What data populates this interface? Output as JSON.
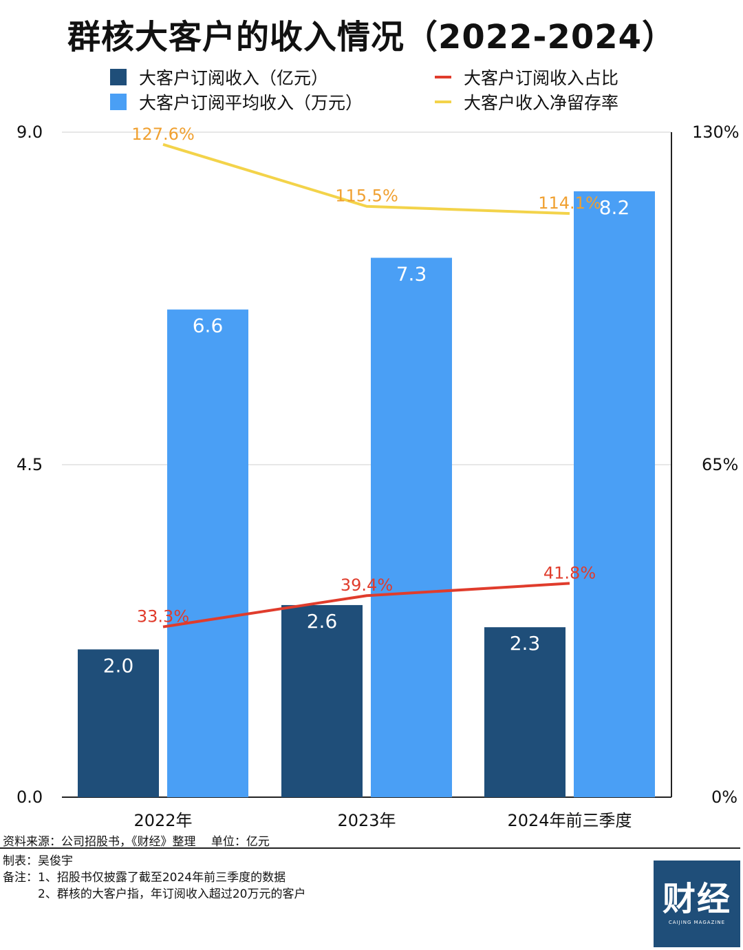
{
  "title": "群核大客户的收入情况（2022-2024）",
  "legend": [
    {
      "label": "大客户订阅收入（亿元）",
      "color": "#1f4e79",
      "kind": "square"
    },
    {
      "label": "大客户订阅收入占比",
      "color": "#e03c2c",
      "kind": "line"
    },
    {
      "label": "大客户订阅平均收入（万元）",
      "color": "#4a9ff5",
      "kind": "square"
    },
    {
      "label": "大客户收入净留存率",
      "color": "#f3d34a",
      "kind": "line"
    }
  ],
  "left_axis_ticks": [
    "9.0",
    "4.5",
    "0.0"
  ],
  "right_axis_ticks": [
    "130%",
    "65%",
    "0%"
  ],
  "chart_data": {
    "type": "bar",
    "categories": [
      "2022年",
      "2023年",
      "2024年前三季度"
    ],
    "ylim": [
      0,
      9
    ],
    "y2lim": [
      0,
      130
    ],
    "grid": true,
    "series": [
      {
        "name": "大客户订阅收入（亿元）",
        "type": "bar",
        "axis": "left",
        "color": "#1f4e79",
        "values": [
          2.0,
          2.6,
          2.3
        ],
        "labels": [
          "2.0",
          "2.6",
          "2.3"
        ]
      },
      {
        "name": "大客户订阅平均收入（万元）",
        "type": "bar",
        "axis": "left",
        "color": "#4a9ff5",
        "values": [
          6.6,
          7.3,
          8.2
        ],
        "labels": [
          "6.6",
          "7.3",
          "8.2"
        ]
      },
      {
        "name": "大客户订阅收入占比",
        "type": "line",
        "axis": "right",
        "color": "#e03c2c",
        "values": [
          33.3,
          39.4,
          41.8
        ],
        "labels": [
          "33.3%",
          "39.4%",
          "41.8%"
        ]
      },
      {
        "name": "大客户收入净留存率",
        "type": "line",
        "axis": "right",
        "color": "#f3d34a",
        "label_color": "#f0a030",
        "values": [
          127.6,
          115.5,
          114.1
        ],
        "labels": [
          "127.6%",
          "115.5%",
          "114.1%"
        ]
      }
    ]
  },
  "footer": {
    "source": "资料来源：公司招股书，《财经》整理　 单位：亿元",
    "maker": "制表：吴俊宇",
    "note1": "备注：1、招股书仅披露了截至2024年前三季度的数据",
    "note2": "　　　2、群核的大客户指，年订阅收入超过20万元的客户"
  },
  "logo": {
    "main": "财经",
    "sub": "CAIJING MAGAZINE"
  }
}
